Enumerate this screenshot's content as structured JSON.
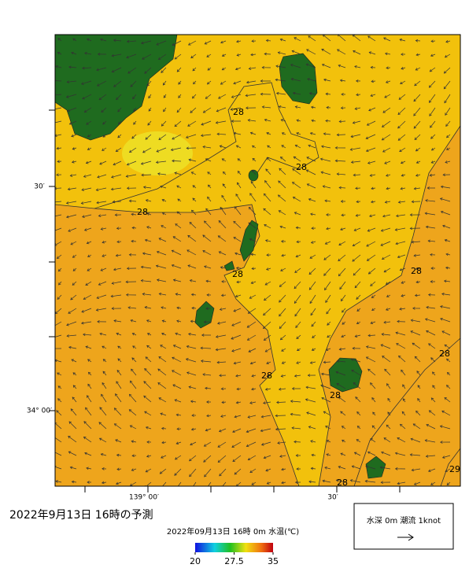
{
  "title": "2022年9月13日 16時の予測",
  "axes": {
    "y_labels": [
      "30′",
      "34° 00′"
    ],
    "x_labels": [
      "139° 00′",
      "30′"
    ]
  },
  "contour_labels": [
    "28",
    "28",
    "28",
    "28",
    "28",
    "28",
    "28",
    "28",
    "28",
    "29"
  ],
  "colorbar": {
    "title": "2022年09月13日 16時 0m 水温(℃)",
    "lim": [
      20,
      35
    ],
    "ticks": [
      20,
      27.5,
      35
    ]
  },
  "legend": {
    "label": "水深 0m 潮流 1knot"
  }
}
